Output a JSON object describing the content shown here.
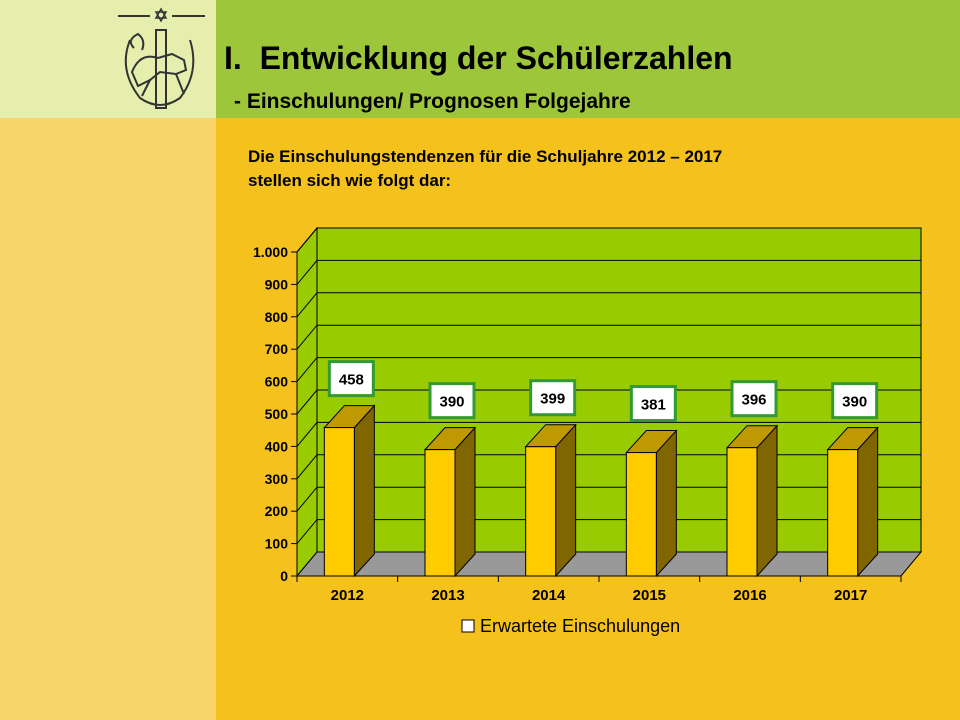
{
  "slide": {
    "title": "I.  Entwicklung der Schülerzahlen",
    "subtitle": "- Einschulungen/ Prognosen Folgejahre",
    "intro_line1": "Die Einschulungstendenzen für die Schuljahre 2012 – 2017",
    "intro_line2": "stellen sich wie folgt dar:"
  },
  "colors": {
    "background": "#f5c11d",
    "left_strip": "#f7d56a",
    "logo_box": "#e6eeae",
    "header_band": "#9dc63a",
    "plot_wall": "#99cc00",
    "plot_floor": "#999999",
    "bar_front": "#ffcc00",
    "bar_side": "#7f6600",
    "bar_top": "#bf9900",
    "label_border": "#339933"
  },
  "logo": {
    "icon": "horse-emblem-icon"
  },
  "chart_data": {
    "type": "bar",
    "categories": [
      "2012",
      "2013",
      "2014",
      "2015",
      "2016",
      "2017"
    ],
    "series": [
      {
        "name": "Erwartete Einschulungen",
        "values": [
          458,
          390,
          399,
          381,
          396,
          390
        ]
      }
    ],
    "data_labels": [
      "458",
      "390",
      "399",
      "381",
      "396",
      "390"
    ],
    "ylim": [
      0,
      1000
    ],
    "yticks": [
      0,
      100,
      200,
      300,
      400,
      500,
      600,
      700,
      800,
      900,
      1000
    ],
    "ytick_labels": [
      "0",
      "100",
      "200",
      "300",
      "400",
      "500",
      "600",
      "700",
      "800",
      "900",
      "1.000"
    ],
    "grid": true,
    "three_d": true,
    "legend": "bottom",
    "title": "",
    "xlabel": "",
    "ylabel": ""
  }
}
